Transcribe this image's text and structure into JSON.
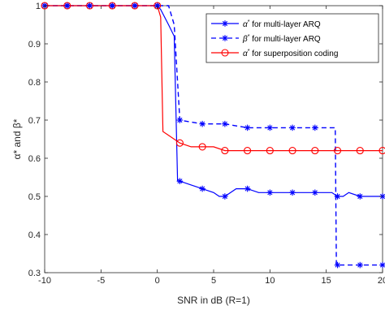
{
  "chart_data": {
    "type": "line",
    "xlabel": "SNR in dB (R=1)",
    "ylabel": "α* and β*",
    "xlim": [
      -10,
      20
    ],
    "ylim": [
      0.3,
      1.0
    ],
    "xticks": [
      -10,
      -5,
      0,
      5,
      10,
      15,
      20
    ],
    "yticks": [
      0.3,
      0.4,
      0.5,
      0.6,
      0.7,
      0.8,
      0.9,
      1
    ],
    "grid": false,
    "legend_position": "top-right",
    "series": [
      {
        "name": "α* for multi-layer ARQ",
        "legend_main": "α",
        "legend_rest": " for multi-layer ARQ",
        "color": "#0000ff",
        "line_style": "solid",
        "marker": "asterisk",
        "line": [
          [
            -10,
            1
          ],
          [
            0,
            1
          ],
          [
            0.3,
            0.99
          ],
          [
            1,
            0.95
          ],
          [
            1.5,
            0.92
          ],
          [
            1.8,
            0.54
          ],
          [
            2,
            0.54
          ],
          [
            3,
            0.53
          ],
          [
            4,
            0.52
          ],
          [
            5,
            0.51
          ],
          [
            5.5,
            0.5
          ],
          [
            6,
            0.5
          ],
          [
            7,
            0.52
          ],
          [
            8,
            0.52
          ],
          [
            9,
            0.51
          ],
          [
            10,
            0.51
          ],
          [
            11,
            0.51
          ],
          [
            12,
            0.51
          ],
          [
            13,
            0.51
          ],
          [
            14,
            0.51
          ],
          [
            15,
            0.51
          ],
          [
            15.5,
            0.51
          ],
          [
            16,
            0.5
          ],
          [
            16.5,
            0.5
          ],
          [
            17,
            0.51
          ],
          [
            18,
            0.5
          ],
          [
            19,
            0.5
          ],
          [
            20,
            0.5
          ]
        ],
        "markers": [
          [
            -10,
            1
          ],
          [
            -8,
            1
          ],
          [
            -6,
            1
          ],
          [
            -4,
            1
          ],
          [
            -2,
            1
          ],
          [
            0,
            1
          ],
          [
            2,
            0.54
          ],
          [
            4,
            0.52
          ],
          [
            6,
            0.5
          ],
          [
            8,
            0.52
          ],
          [
            10,
            0.51
          ],
          [
            12,
            0.51
          ],
          [
            14,
            0.51
          ],
          [
            16,
            0.5
          ],
          [
            18,
            0.5
          ],
          [
            20,
            0.5
          ]
        ]
      },
      {
        "name": "β* for multi-layer ARQ",
        "legend_main": "β",
        "legend_rest": " for multi-layer ARQ",
        "color": "#0000ff",
        "line_style": "dashed",
        "marker": "asterisk",
        "line": [
          [
            -10,
            1
          ],
          [
            0,
            1
          ],
          [
            1,
            1
          ],
          [
            1.5,
            0.95
          ],
          [
            2,
            0.7
          ],
          [
            4,
            0.69
          ],
          [
            6,
            0.69
          ],
          [
            8,
            0.68
          ],
          [
            10,
            0.68
          ],
          [
            12,
            0.68
          ],
          [
            14,
            0.68
          ],
          [
            15.8,
            0.68
          ],
          [
            15.9,
            0.32
          ],
          [
            18,
            0.32
          ],
          [
            20,
            0.32
          ]
        ],
        "markers": [
          [
            -10,
            1
          ],
          [
            -8,
            1
          ],
          [
            -6,
            1
          ],
          [
            -4,
            1
          ],
          [
            -2,
            1
          ],
          [
            0,
            1
          ],
          [
            2,
            0.7
          ],
          [
            4,
            0.69
          ],
          [
            6,
            0.69
          ],
          [
            8,
            0.68
          ],
          [
            10,
            0.68
          ],
          [
            12,
            0.68
          ],
          [
            14,
            0.68
          ],
          [
            16,
            0.32
          ],
          [
            18,
            0.32
          ],
          [
            20,
            0.32
          ]
        ]
      },
      {
        "name": "α* for superposition coding",
        "legend_main": "α",
        "legend_rest": " for superposition coding",
        "color": "#ff0000",
        "line_style": "solid",
        "marker": "circle",
        "line": [
          [
            -10,
            1
          ],
          [
            0,
            1
          ],
          [
            0.3,
            0.97
          ],
          [
            0.5,
            0.67
          ],
          [
            1,
            0.66
          ],
          [
            2,
            0.64
          ],
          [
            3,
            0.63
          ],
          [
            4,
            0.63
          ],
          [
            5,
            0.63
          ],
          [
            6,
            0.62
          ],
          [
            8,
            0.62
          ],
          [
            10,
            0.62
          ],
          [
            12,
            0.62
          ],
          [
            14,
            0.62
          ],
          [
            16,
            0.62
          ],
          [
            18,
            0.62
          ],
          [
            20,
            0.62
          ]
        ],
        "markers": [
          [
            -10,
            1
          ],
          [
            -8,
            1
          ],
          [
            -6,
            1
          ],
          [
            -4,
            1
          ],
          [
            -2,
            1
          ],
          [
            0,
            1
          ],
          [
            2,
            0.64
          ],
          [
            4,
            0.63
          ],
          [
            6,
            0.62
          ],
          [
            8,
            0.62
          ],
          [
            10,
            0.62
          ],
          [
            12,
            0.62
          ],
          [
            14,
            0.62
          ],
          [
            16,
            0.62
          ],
          [
            18,
            0.62
          ],
          [
            20,
            0.62
          ]
        ]
      }
    ]
  }
}
